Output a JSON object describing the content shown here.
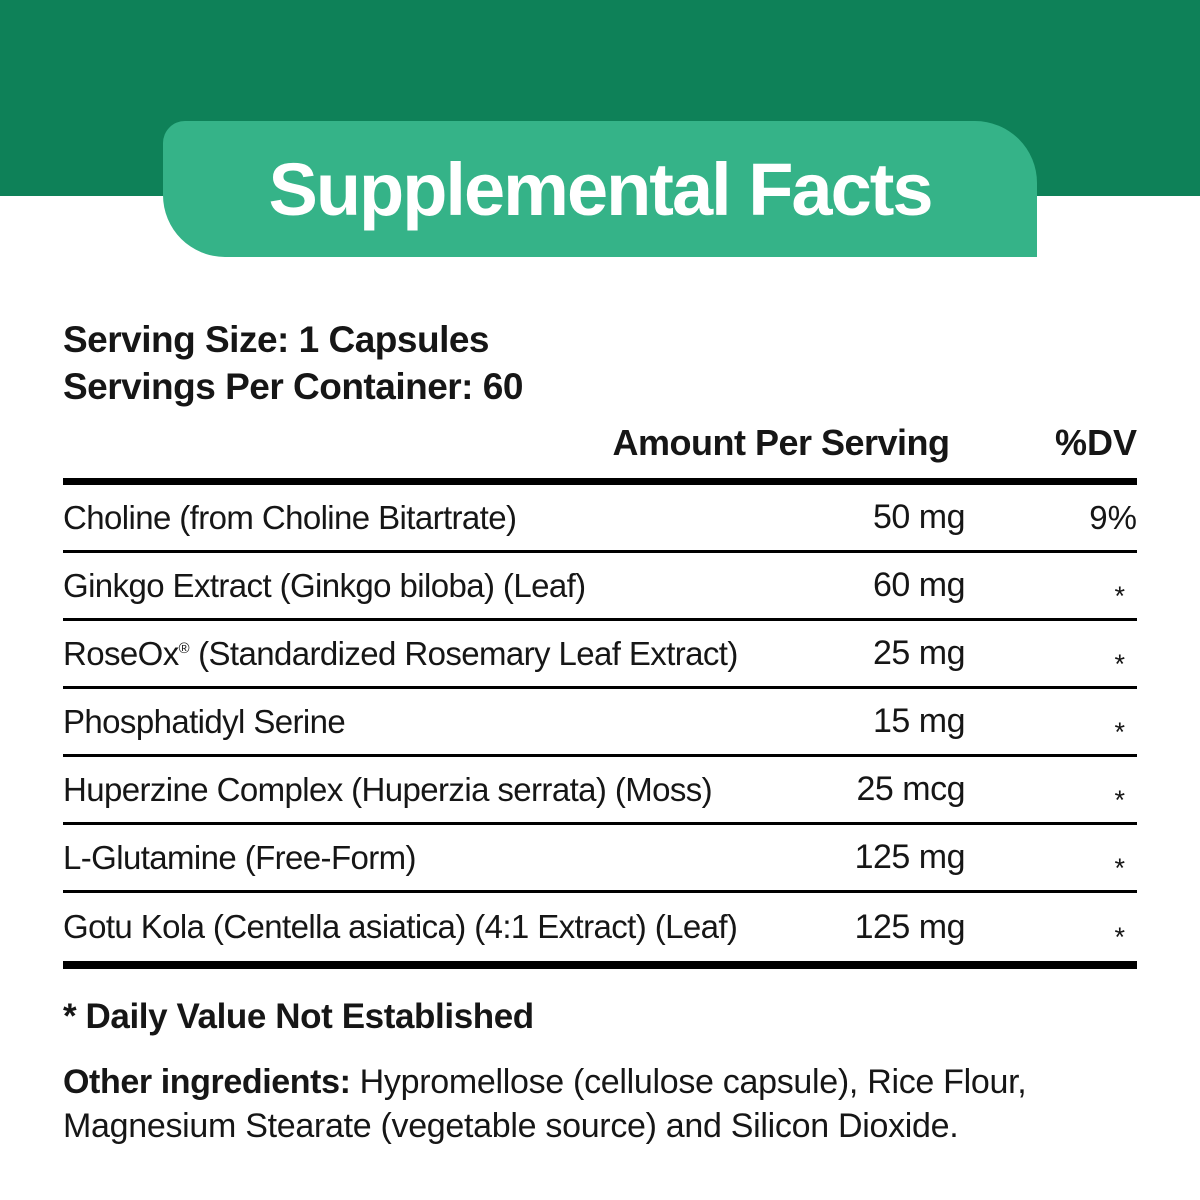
{
  "title": "Supplemental Facts",
  "colors": {
    "header_bg": "#0e8158",
    "banner_bg": "#35b388",
    "title_text": "#ffffff",
    "rule_color": "#000000",
    "text_color": "#161616"
  },
  "serving": {
    "size": "Serving Size: 1 Capsules",
    "per_container": "Servings Per Container: 60"
  },
  "table": {
    "amount_header": "Amount Per Serving",
    "dv_header": "%DV",
    "rows": [
      {
        "name": "Choline (from Choline Bitartrate)",
        "amount": "50 mg",
        "dv": "9%"
      },
      {
        "name": "Ginkgo Extract (Ginkgo biloba) (Leaf)",
        "amount": "60 mg",
        "dv": "*"
      },
      {
        "name": "RoseOx® (Standardized Rosemary Leaf Extract)",
        "amount": "25 mg",
        "dv": "*"
      },
      {
        "name": "Phosphatidyl Serine",
        "amount": "15 mg",
        "dv": "*"
      },
      {
        "name": "Huperzine Complex (Huperzia serrata) (Moss)",
        "amount": "25 mcg",
        "dv": "*"
      },
      {
        "name": "L-Glutamine (Free-Form)",
        "amount": "125 mg",
        "dv": "*"
      },
      {
        "name": "Gotu Kola (Centella asiatica) (4:1 Extract) (Leaf)",
        "amount": "125 mg",
        "dv": "*"
      }
    ]
  },
  "footnote": "* Daily Value Not Established",
  "other_ingredients": {
    "label": "Other ingredients:",
    "text": " Hypromellose (cellulose capsule), Rice Flour, Magnesium Stearate (vegetable source) and Silicon Dioxide."
  }
}
